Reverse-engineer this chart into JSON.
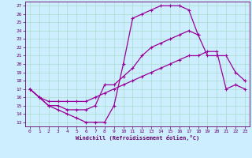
{
  "xlabel": "Windchill (Refroidissement éolien,°C)",
  "bg_color": "#cceeff",
  "line_color": "#990099",
  "grid_color": "#aaddcc",
  "xlim": [
    -0.5,
    23.5
  ],
  "ylim": [
    12.5,
    27.5
  ],
  "xticks": [
    0,
    1,
    2,
    3,
    4,
    5,
    6,
    7,
    8,
    9,
    10,
    11,
    12,
    13,
    14,
    15,
    16,
    17,
    18,
    19,
    20,
    21,
    22,
    23
  ],
  "yticks": [
    13,
    14,
    15,
    16,
    17,
    18,
    19,
    20,
    21,
    22,
    23,
    24,
    25,
    26,
    27
  ],
  "line1_x": [
    0,
    1,
    2,
    3,
    4,
    5,
    6,
    7,
    8,
    9,
    10,
    11,
    12,
    13,
    14,
    15,
    16,
    17,
    18
  ],
  "line1_y": [
    17,
    16,
    15,
    14.5,
    14,
    13.5,
    13,
    13,
    13,
    15,
    20,
    25.5,
    26,
    26.5,
    27,
    27,
    27,
    26.5,
    23.5
  ],
  "line2_x": [
    0,
    1,
    2,
    3,
    4,
    5,
    6,
    7,
    8,
    9,
    10,
    11,
    12,
    13,
    14,
    15,
    16,
    17,
    18,
    19,
    20,
    21,
    22,
    23
  ],
  "line2_y": [
    17,
    16,
    15,
    15,
    14.5,
    14.5,
    14.5,
    15,
    17.5,
    17.5,
    18.5,
    19.5,
    21,
    22,
    22.5,
    23,
    23.5,
    24,
    23.5,
    21,
    21,
    21,
    19,
    18
  ],
  "line3_x": [
    0,
    1,
    2,
    3,
    4,
    5,
    6,
    7,
    8,
    9,
    10,
    11,
    12,
    13,
    14,
    15,
    16,
    17,
    18,
    19,
    20,
    21,
    22,
    23
  ],
  "line3_y": [
    17,
    16,
    15.5,
    15.5,
    15.5,
    15.5,
    15.5,
    16,
    16.5,
    17,
    17.5,
    18,
    18.5,
    19,
    19.5,
    20,
    20.5,
    21,
    21,
    21.5,
    21.5,
    17,
    17.5,
    17
  ]
}
